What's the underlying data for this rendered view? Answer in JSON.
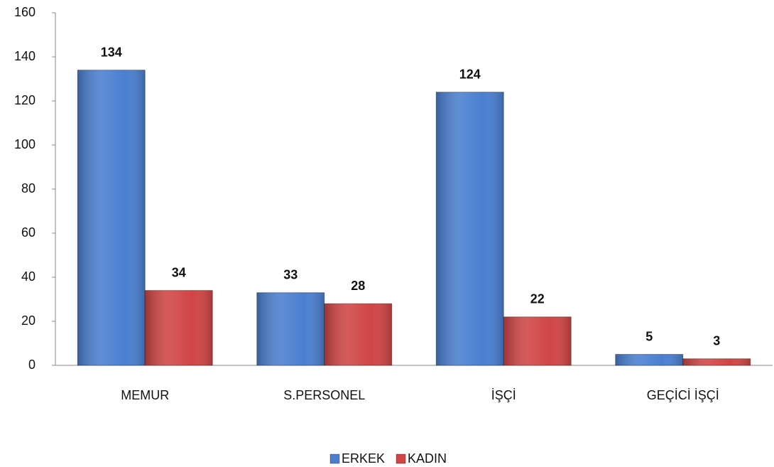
{
  "chart_data": {
    "type": "bar",
    "categories": [
      "MEMUR",
      "S.PERSONEL",
      "İŞÇİ",
      "GEÇİCİ İŞÇİ"
    ],
    "series": [
      {
        "name": "ERKEK",
        "color": "#4a7fd0",
        "values": [
          134,
          33,
          124,
          5
        ]
      },
      {
        "name": "KADIN",
        "color": "#d04545",
        "values": [
          34,
          28,
          22,
          3
        ]
      }
    ],
    "ylim": [
      0,
      160
    ],
    "yticks": [
      0,
      20,
      40,
      60,
      80,
      100,
      120,
      140,
      160
    ],
    "legend": "bottom"
  }
}
